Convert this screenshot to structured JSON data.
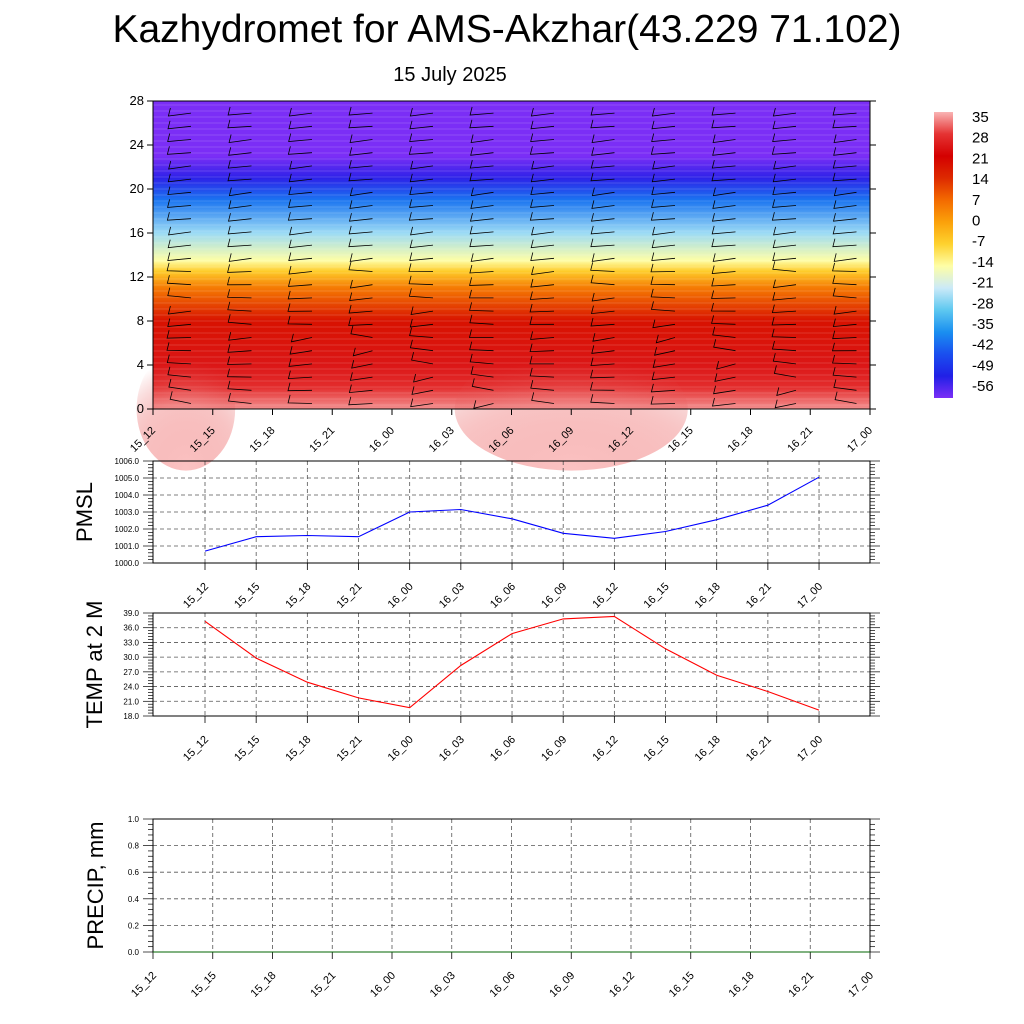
{
  "title": "Kazhydromet for AMS-Akzhar(43.229 71.102)",
  "subtitle": "15 July 2025",
  "colors": {
    "pmsl_line": "#0000ff",
    "temp_line": "#ff0000",
    "precip_line": "#006400",
    "grid": "#555555"
  },
  "chart_data": [
    {
      "type": "heatmap",
      "name": "vertical-profile",
      "x": [
        "15_12",
        "15_15",
        "15_18",
        "15_21",
        "16_00",
        "16_03",
        "16_06",
        "16_09",
        "16_12",
        "16_15",
        "16_18",
        "16_21",
        "17_00"
      ],
      "yticks": [
        0,
        4,
        8,
        12,
        16,
        20,
        24,
        28
      ],
      "ylim": [
        0,
        28
      ],
      "colorbar": {
        "labels": [
          "35",
          "28",
          "21",
          "14",
          "7",
          "0",
          "-7",
          "-14",
          "-21",
          "-28",
          "-35",
          "-42",
          "-49",
          "-56"
        ],
        "stops": [
          "#f9b4b4",
          "#e53333",
          "#d40000",
          "#dd2a00",
          "#f36a00",
          "#fba10a",
          "#fed22e",
          "#fefea6",
          "#cbeaf8",
          "#5ec8f0",
          "#1a8ff0",
          "#1a4fef",
          "#2020e6",
          "#7b2ef6"
        ]
      },
      "temperature_profile": [
        {
          "h": 0,
          "t": 33
        },
        {
          "h": 2,
          "t": 27
        },
        {
          "h": 4,
          "t": 24
        },
        {
          "h": 8,
          "t": 18
        },
        {
          "h": 11,
          "t": 5
        },
        {
          "h": 12.5,
          "t": -6
        },
        {
          "h": 13.5,
          "t": -14
        },
        {
          "h": 16,
          "t": -24
        },
        {
          "h": 19,
          "t": -38
        },
        {
          "h": 21,
          "t": -50
        },
        {
          "h": 23,
          "t": -56
        },
        {
          "h": 28,
          "t": -58
        }
      ]
    },
    {
      "type": "line",
      "name": "pmsl",
      "ylabel": "PMSL",
      "x": [
        "15_12",
        "15_15",
        "15_18",
        "15_21",
        "16_00",
        "16_03",
        "16_06",
        "16_09",
        "16_12",
        "16_15",
        "16_18",
        "16_21",
        "17_00"
      ],
      "values": [
        1000.7,
        1001.55,
        1001.62,
        1001.55,
        1003.0,
        1003.15,
        1002.6,
        1001.75,
        1001.45,
        1001.85,
        1002.55,
        1003.4,
        1005.05
      ],
      "ylim": [
        1000.0,
        1006.0
      ],
      "yticks": [
        "1000.0",
        "1001.0",
        "1002.0",
        "1003.0",
        "1004.0",
        "1005.0",
        "1006.0"
      ],
      "grid": true
    },
    {
      "type": "line",
      "name": "temp",
      "ylabel": "TEMP at 2 M",
      "x": [
        "15_12",
        "15_15",
        "15_18",
        "15_21",
        "16_00",
        "16_03",
        "16_06",
        "16_09",
        "16_12",
        "16_15",
        "16_18",
        "16_21",
        "17_00"
      ],
      "values": [
        37.3,
        29.8,
        24.9,
        21.7,
        19.7,
        28.3,
        34.8,
        37.8,
        38.3,
        31.7,
        26.3,
        23.0,
        19.2
      ],
      "ylim": [
        18.0,
        39.0
      ],
      "yticks": [
        "18.0",
        "21.0",
        "24.0",
        "27.0",
        "30.0",
        "33.0",
        "36.0",
        "39.0"
      ],
      "grid": true
    },
    {
      "type": "line",
      "name": "precip",
      "ylabel": "PRECIP, mm",
      "x": [
        "15_12",
        "15_15",
        "15_18",
        "15_21",
        "16_00",
        "16_03",
        "16_06",
        "16_09",
        "16_12",
        "16_15",
        "16_18",
        "16_21",
        "17_00"
      ],
      "values": [
        0,
        0,
        0,
        0,
        0,
        0,
        0,
        0,
        0,
        0,
        0,
        0,
        0
      ],
      "ylim": [
        0.0,
        1.0
      ],
      "yticks": [
        "0.0",
        "0.2",
        "0.4",
        "0.6",
        "0.8",
        "1.0"
      ],
      "grid": true
    }
  ]
}
